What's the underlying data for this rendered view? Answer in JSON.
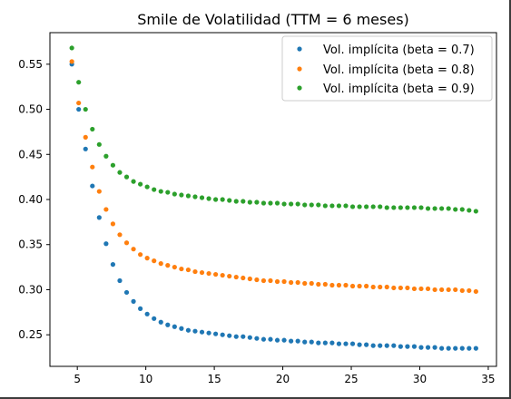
{
  "chart_data": {
    "type": "scatter",
    "title": "Smile de Volatilidad (TTM = 6 meses)",
    "xlabel": "",
    "ylabel": "",
    "xlim": [
      3.0,
      35.6
    ],
    "ylim": [
      0.215,
      0.585
    ],
    "xticks": [
      5,
      10,
      15,
      20,
      25,
      30,
      35
    ],
    "yticks": [
      0.25,
      0.3,
      0.35,
      0.4,
      0.45,
      0.5,
      0.55
    ],
    "ytick_labels": [
      "0.25",
      "0.30",
      "0.35",
      "0.40",
      "0.45",
      "0.50",
      "0.55"
    ],
    "grid": false,
    "legend_position": "top-right",
    "x_start": 4.6,
    "x_step": 0.5,
    "n_points": 60,
    "series": [
      {
        "name": "Vol. implícita (beta = 0.7)",
        "color": "#1f77b4",
        "values": [
          0.55,
          0.5,
          0.456,
          0.415,
          0.38,
          0.351,
          0.328,
          0.31,
          0.297,
          0.287,
          0.279,
          0.273,
          0.268,
          0.264,
          0.261,
          0.259,
          0.257,
          0.255,
          0.254,
          0.253,
          0.252,
          0.251,
          0.25,
          0.249,
          0.248,
          0.248,
          0.247,
          0.246,
          0.245,
          0.245,
          0.244,
          0.244,
          0.243,
          0.243,
          0.242,
          0.242,
          0.241,
          0.241,
          0.241,
          0.24,
          0.24,
          0.24,
          0.239,
          0.239,
          0.238,
          0.238,
          0.238,
          0.238,
          0.237,
          0.237,
          0.237,
          0.236,
          0.236,
          0.236,
          0.235,
          0.235,
          0.235,
          0.235,
          0.235,
          0.235
        ]
      },
      {
        "name": "Vol. implícita (beta = 0.8)",
        "color": "#ff7f0e",
        "values": [
          0.553,
          0.507,
          0.469,
          0.436,
          0.409,
          0.389,
          0.373,
          0.361,
          0.352,
          0.345,
          0.339,
          0.335,
          0.332,
          0.329,
          0.327,
          0.325,
          0.323,
          0.322,
          0.32,
          0.319,
          0.318,
          0.317,
          0.316,
          0.315,
          0.314,
          0.313,
          0.312,
          0.311,
          0.31,
          0.31,
          0.309,
          0.309,
          0.308,
          0.308,
          0.307,
          0.307,
          0.306,
          0.306,
          0.305,
          0.305,
          0.305,
          0.304,
          0.304,
          0.304,
          0.303,
          0.303,
          0.303,
          0.302,
          0.302,
          0.302,
          0.301,
          0.301,
          0.301,
          0.3,
          0.3,
          0.3,
          0.3,
          0.299,
          0.299,
          0.298
        ]
      },
      {
        "name": "Vol. implícita (beta = 0.9)",
        "color": "#2ca02c",
        "values": [
          0.568,
          0.53,
          0.5,
          0.478,
          0.461,
          0.448,
          0.438,
          0.43,
          0.425,
          0.42,
          0.417,
          0.414,
          0.411,
          0.409,
          0.408,
          0.406,
          0.405,
          0.404,
          0.403,
          0.402,
          0.401,
          0.4,
          0.4,
          0.399,
          0.398,
          0.398,
          0.397,
          0.397,
          0.396,
          0.396,
          0.396,
          0.395,
          0.395,
          0.395,
          0.394,
          0.394,
          0.394,
          0.393,
          0.393,
          0.393,
          0.393,
          0.392,
          0.392,
          0.392,
          0.392,
          0.392,
          0.391,
          0.391,
          0.391,
          0.391,
          0.391,
          0.391,
          0.39,
          0.39,
          0.39,
          0.39,
          0.389,
          0.389,
          0.388,
          0.387
        ]
      }
    ]
  }
}
